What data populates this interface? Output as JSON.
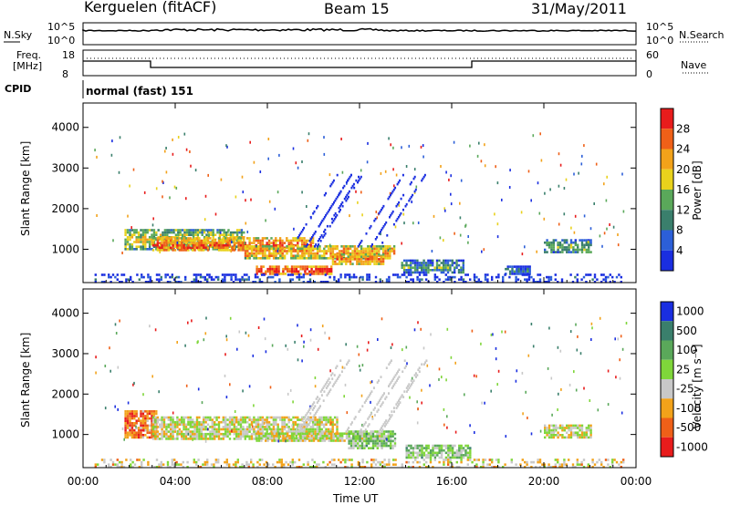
{
  "header": {
    "station": "Kerguelen (fitACF)",
    "beam": "Beam 15",
    "date": "31/May/2011"
  },
  "top_panels": {
    "nsky": {
      "label": "N.Sky",
      "tick_high": "10^5",
      "tick_low": "10^0",
      "right_label": "N.Search",
      "right_tick_high": "10^5",
      "right_tick_low": "10^0"
    },
    "freq": {
      "label_line1": "Freq.",
      "label_line2": "[MHz]",
      "tick_high": "18",
      "tick_low": "8",
      "right_label": "Nave",
      "right_tick_high": "60",
      "right_tick_low": "0"
    },
    "cpid": {
      "label": "CPID",
      "value": "normal (fast) 151"
    }
  },
  "chart_data": {
    "type": "heatmap",
    "xlabel": "Time UT",
    "x_ticks": [
      "00:00",
      "04:00",
      "08:00",
      "12:00",
      "16:00",
      "20:00",
      "00:00"
    ],
    "x_range_hours": [
      0,
      24
    ],
    "ylabel": "Slant Range [km]",
    "y_ticks": [
      1000,
      2000,
      3000,
      4000
    ],
    "y_range_km": [
      180,
      4600
    ],
    "panels": [
      {
        "name": "power",
        "colorbar_label": "Power [dB]",
        "colorbar_ticks": [
          "4",
          "8",
          "12",
          "16",
          "20",
          "24",
          "28"
        ],
        "colors": [
          "#1a2ee0",
          "#2c5fd8",
          "#3a7f6c",
          "#5aa85a",
          "#e9d21c",
          "#f2a21a",
          "#ef6018",
          "#e81c1c"
        ],
        "regions": [
          {
            "t0": 1.8,
            "t1": 7.0,
            "r0": 1000,
            "r1": 1500,
            "level": 0.6
          },
          {
            "t0": 3.0,
            "t1": 10.0,
            "r0": 950,
            "r1": 1300,
            "level": 0.85
          },
          {
            "t0": 7.0,
            "t1": 13.5,
            "r0": 800,
            "r1": 1100,
            "level": 0.75
          },
          {
            "t0": 7.5,
            "t1": 10.8,
            "r0": 400,
            "r1": 600,
            "level": 0.95
          },
          {
            "t0": 10.8,
            "t1": 13.0,
            "r0": 650,
            "r1": 900,
            "level": 0.8
          },
          {
            "t0": 13.8,
            "t1": 16.5,
            "r0": 400,
            "r1": 750,
            "level": 0.4
          },
          {
            "t0": 20.0,
            "t1": 22.0,
            "r0": 900,
            "r1": 1250,
            "level": 0.45
          },
          {
            "t0": 18.3,
            "t1": 19.4,
            "r0": 400,
            "r1": 600,
            "level": 0.3
          },
          {
            "t0": 0.5,
            "t1": 23.5,
            "r0": 200,
            "r1": 400,
            "level": 0.2
          }
        ]
      },
      {
        "name": "velocity",
        "colorbar_label": "Velocity [m s⁻¹]",
        "colorbar_ticks": [
          "1000",
          "500",
          "100",
          "25",
          "-25",
          "-100",
          "-500",
          "-1000"
        ],
        "colors": [
          "#1a2ee0",
          "#3a7f6c",
          "#5aa85a",
          "#7fd63a",
          "#c8c8c8",
          "#f2a21a",
          "#ef6018",
          "#e81c1c"
        ],
        "regions": [
          {
            "t0": 1.8,
            "t1": 3.2,
            "r0": 950,
            "r1": 1600,
            "level": 0.78
          },
          {
            "t0": 3.0,
            "t1": 11.0,
            "r0": 900,
            "r1": 1450,
            "level": 0.55
          },
          {
            "t0": 7.5,
            "t1": 13.0,
            "r0": 850,
            "r1": 1050,
            "level": 0.55
          },
          {
            "t0": 11.5,
            "t1": 13.5,
            "r0": 650,
            "r1": 1100,
            "level": 0.42
          },
          {
            "t0": 14.0,
            "t1": 16.8,
            "r0": 400,
            "r1": 750,
            "level": 0.42
          },
          {
            "t0": 20.0,
            "t1": 22.0,
            "r0": 900,
            "r1": 1250,
            "level": 0.55
          },
          {
            "t0": 0.5,
            "t1": 23.5,
            "r0": 200,
            "r1": 400,
            "level": 0.6
          }
        ]
      }
    ]
  }
}
